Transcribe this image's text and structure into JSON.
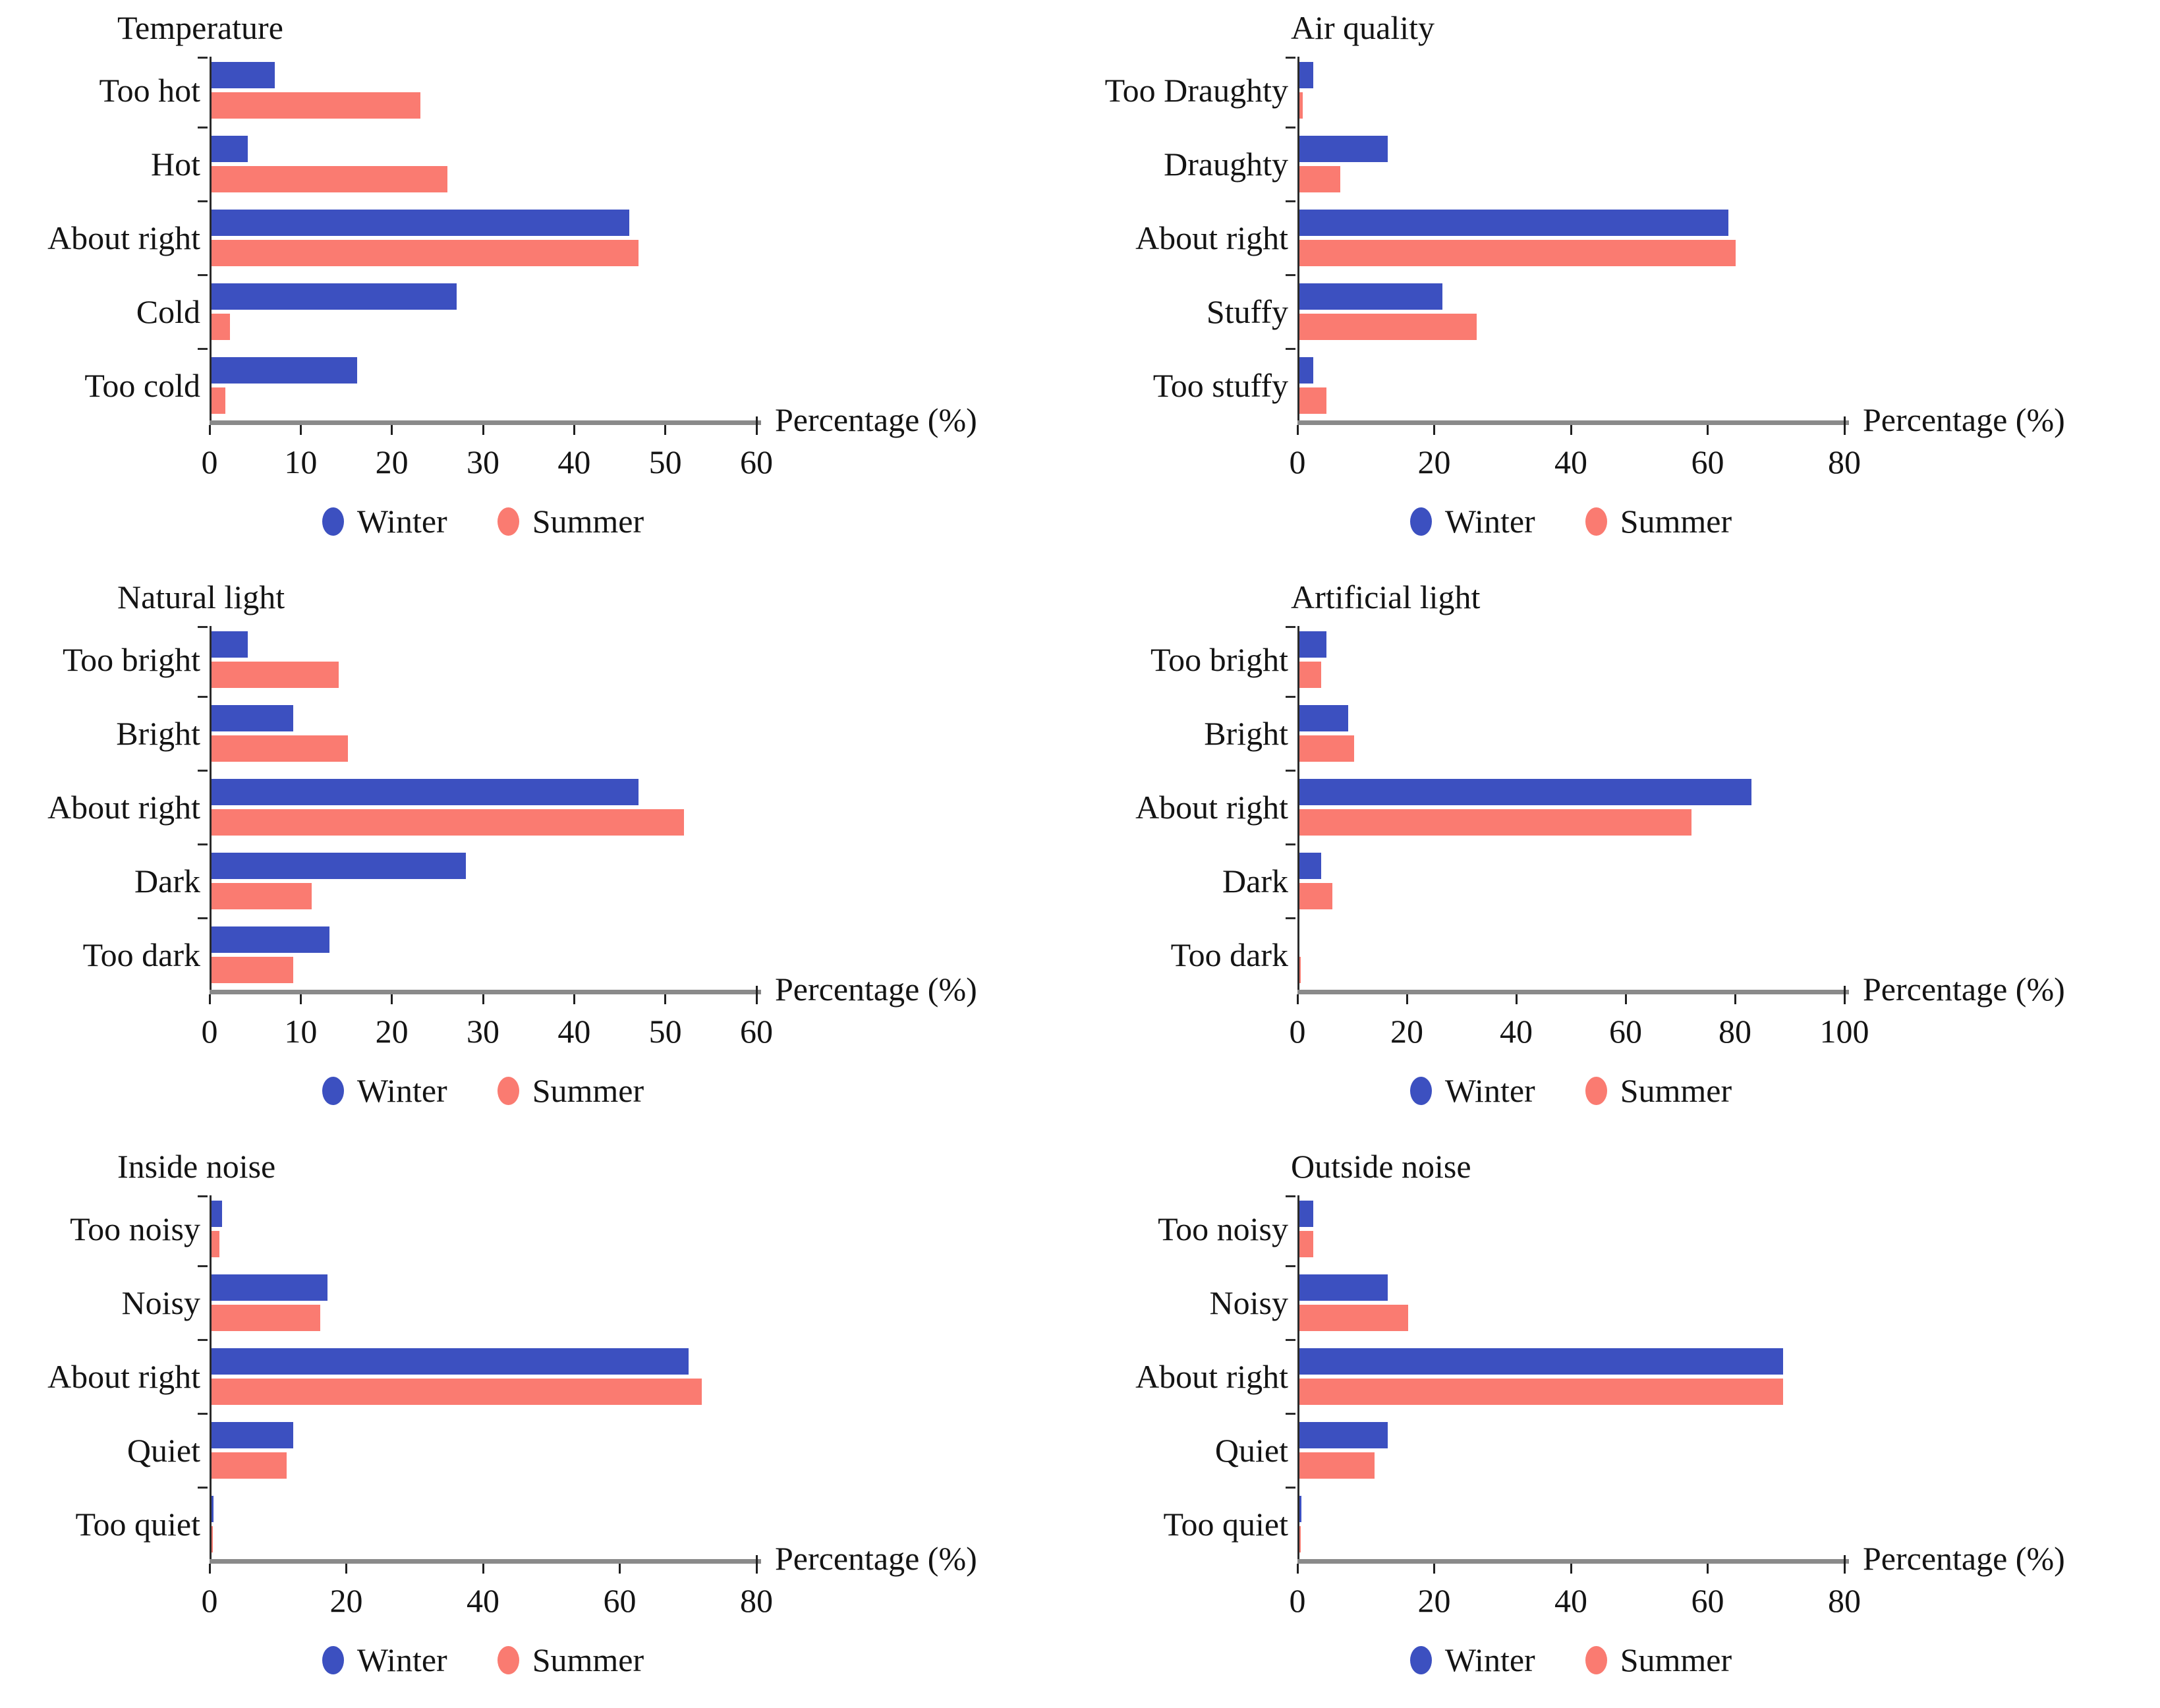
{
  "figure": {
    "xaxis_label": "Percentage (%)",
    "legend": [
      {
        "label": "Winter",
        "color": "#3c50c0"
      },
      {
        "label": "Summer",
        "color": "#fa7b71"
      }
    ],
    "colors": {
      "winter": "#3c50c0",
      "summer": "#fa7b71",
      "axis_line_gray": "#8a8a8a",
      "axis_tick_black": "#202020",
      "text": "#141414"
    }
  },
  "chart_data": [
    {
      "type": "bar",
      "orientation": "horizontal",
      "title": "Temperature",
      "categories": [
        "Too hot",
        "Hot",
        "About right",
        "Cold",
        "Too cold"
      ],
      "series": [
        {
          "name": "Winter",
          "values": [
            7,
            4,
            46,
            27,
            16
          ]
        },
        {
          "name": "Summer",
          "values": [
            23,
            26,
            47,
            2,
            1.5
          ]
        }
      ],
      "xlabel": "Percentage (%)",
      "xlim": [
        0,
        60
      ],
      "xticks": [
        0,
        10,
        20,
        30,
        40,
        50,
        60
      ],
      "grid": false,
      "legend_position": "bottom"
    },
    {
      "type": "bar",
      "orientation": "horizontal",
      "title": "Air quality",
      "categories": [
        "Too Draughty",
        "Draughty",
        "About right",
        "Stuffy",
        "Too stuffy"
      ],
      "series": [
        {
          "name": "Winter",
          "values": [
            2,
            13,
            63,
            21,
            2
          ]
        },
        {
          "name": "Summer",
          "values": [
            0.5,
            6,
            64,
            26,
            4
          ]
        }
      ],
      "xlabel": "Percentage (%)",
      "xlim": [
        0,
        80
      ],
      "xticks": [
        0,
        20,
        40,
        60,
        80
      ],
      "grid": false,
      "legend_position": "bottom"
    },
    {
      "type": "bar",
      "orientation": "horizontal",
      "title": "Natural light",
      "categories": [
        "Too bright",
        "Bright",
        "About right",
        "Dark",
        "Too dark"
      ],
      "series": [
        {
          "name": "Winter",
          "values": [
            4,
            9,
            47,
            28,
            13
          ]
        },
        {
          "name": "Summer",
          "values": [
            14,
            15,
            52,
            11,
            9
          ]
        }
      ],
      "xlabel": "Percentage (%)",
      "xlim": [
        0,
        60
      ],
      "xticks": [
        0,
        10,
        20,
        30,
        40,
        50,
        60
      ],
      "grid": false,
      "legend_position": "bottom"
    },
    {
      "type": "bar",
      "orientation": "horizontal",
      "title": "Artificial light",
      "categories": [
        "Too bright",
        "Bright",
        "About right",
        "Dark",
        "Too dark"
      ],
      "series": [
        {
          "name": "Winter",
          "values": [
            5,
            9,
            83,
            4,
            0
          ]
        },
        {
          "name": "Summer",
          "values": [
            4,
            10,
            72,
            6,
            0.3
          ]
        }
      ],
      "xlabel": "Percentage (%)",
      "xlim": [
        0,
        100
      ],
      "xticks": [
        0,
        20,
        40,
        60,
        80,
        100
      ],
      "grid": false,
      "legend_position": "bottom"
    },
    {
      "type": "bar",
      "orientation": "horizontal",
      "title": "Inside noise",
      "categories": [
        "Too noisy",
        "Noisy",
        "About right",
        "Quiet",
        "Too quiet"
      ],
      "series": [
        {
          "name": "Winter",
          "values": [
            1.5,
            17,
            70,
            12,
            0.3
          ]
        },
        {
          "name": "Summer",
          "values": [
            1.2,
            16,
            72,
            11,
            0.2
          ]
        }
      ],
      "xlabel": "Percentage (%)",
      "xlim": [
        0,
        80
      ],
      "xticks": [
        0,
        20,
        40,
        60,
        80
      ],
      "grid": false,
      "legend_position": "bottom"
    },
    {
      "type": "bar",
      "orientation": "horizontal",
      "title": "Outside noise",
      "categories": [
        "Too noisy",
        "Noisy",
        "About right",
        "Quiet",
        "Too quiet"
      ],
      "series": [
        {
          "name": "Winter",
          "values": [
            2,
            13,
            71,
            13,
            0.3
          ]
        },
        {
          "name": "Summer",
          "values": [
            2,
            16,
            71,
            11,
            0.2
          ]
        }
      ],
      "xlabel": "Percentage (%)",
      "xlim": [
        0,
        80
      ],
      "xticks": [
        0,
        20,
        40,
        60,
        80
      ],
      "grid": false,
      "legend_position": "bottom"
    }
  ]
}
